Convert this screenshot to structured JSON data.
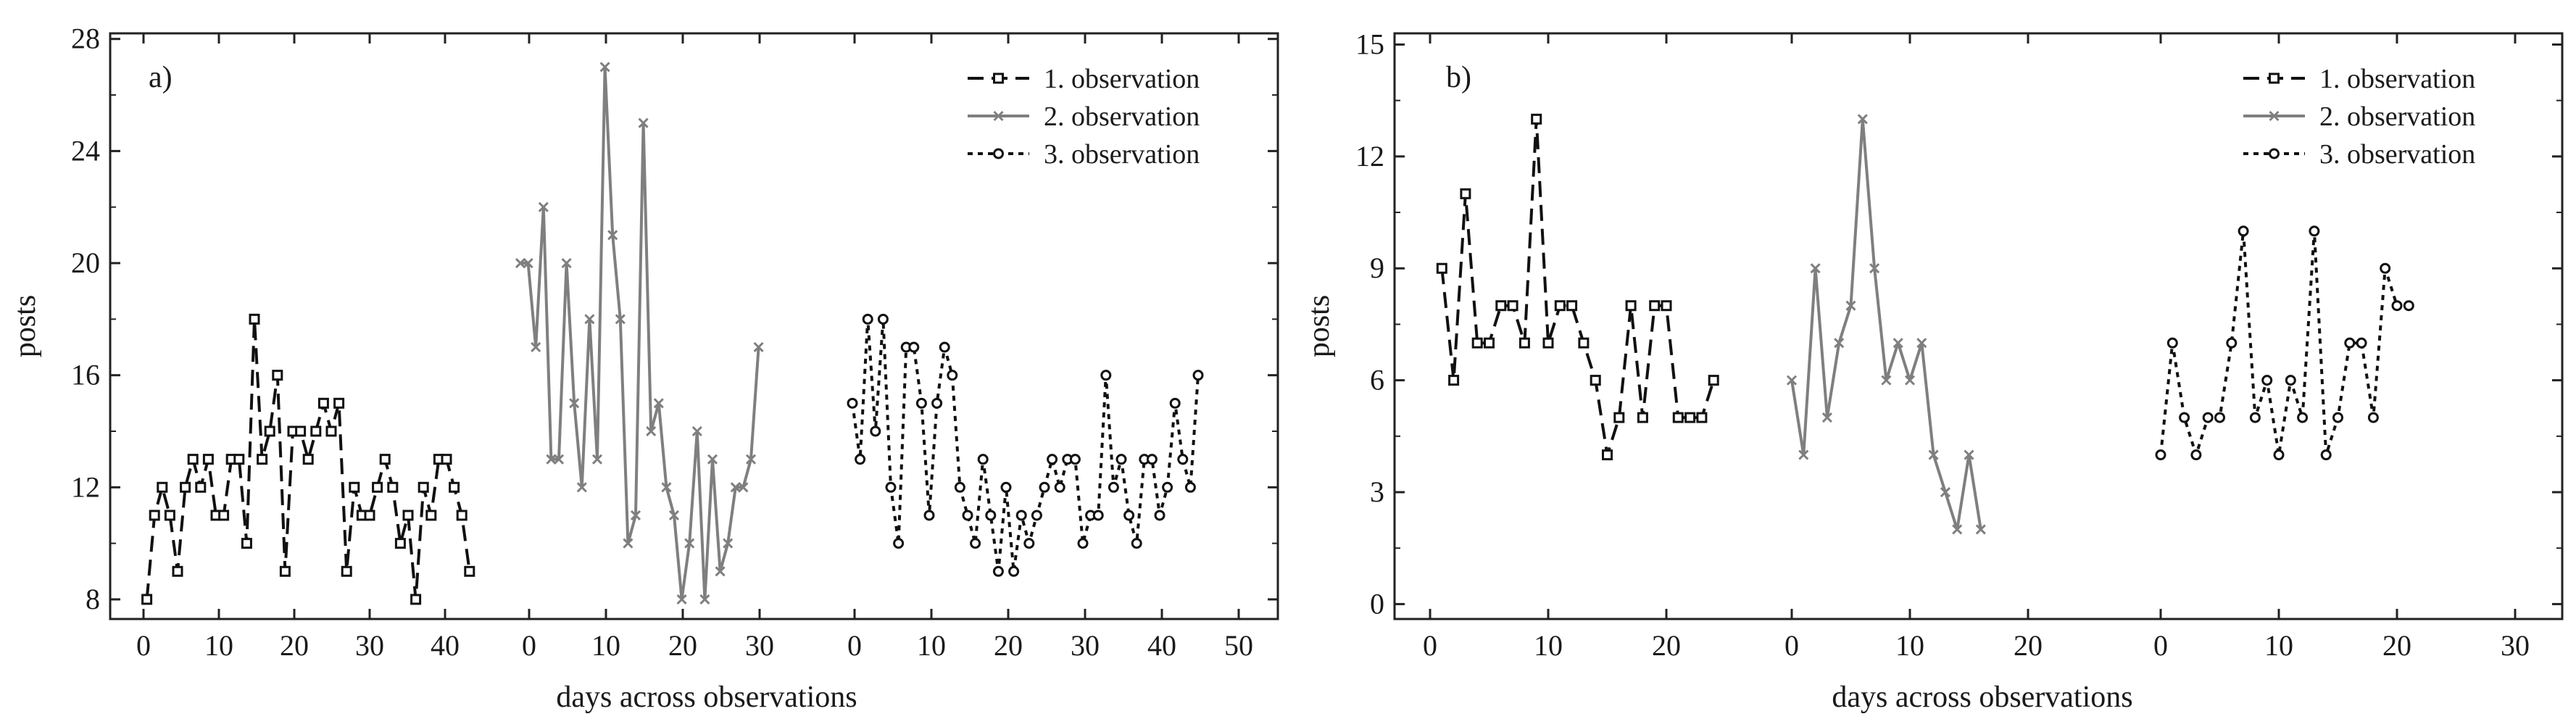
{
  "chart_data": [
    {
      "type": "line",
      "panel_label": "a)",
      "xlabel": "days across observations",
      "ylabel": "posts",
      "xtick_labels": [
        "0",
        "10",
        "20",
        "30",
        "40",
        "0",
        "10",
        "20",
        "30",
        "0",
        "10",
        "20",
        "30",
        "40",
        "50"
      ],
      "yticks": [
        8,
        12,
        16,
        20,
        24,
        28
      ],
      "ylim": [
        7.3,
        28.2
      ],
      "grid": false,
      "legend_position": "top-right",
      "series": [
        {
          "name": "1. observation",
          "style": "dashed",
          "color": "#111111",
          "marker": "square",
          "x": [
            1,
            2,
            3,
            4,
            5,
            6,
            7,
            8,
            9,
            10,
            11,
            12,
            13,
            14,
            15,
            16,
            17,
            18,
            19,
            20,
            21,
            22,
            23,
            24,
            25,
            26,
            27,
            28,
            29,
            30,
            31,
            32,
            33,
            34,
            35,
            36,
            37,
            38,
            39,
            40,
            41,
            42,
            43
          ],
          "y": [
            8,
            11,
            12,
            11,
            9,
            12,
            13,
            12,
            13,
            11,
            11,
            13,
            13,
            10,
            18,
            13,
            14,
            16,
            9,
            14,
            14,
            13,
            14,
            15,
            14,
            15,
            9,
            12,
            11,
            11,
            12,
            13,
            12,
            10,
            11,
            8,
            12,
            11,
            13,
            13,
            12,
            11,
            9
          ]
        },
        {
          "name": "2. observation",
          "style": "solid",
          "color": "#7f7f7f",
          "marker": "x",
          "x": [
            0,
            1,
            2,
            3,
            4,
            5,
            6,
            7,
            8,
            9,
            10,
            11,
            12,
            13,
            14,
            15,
            16,
            17,
            18,
            19,
            20,
            21,
            22,
            23,
            24,
            25,
            26,
            27,
            28,
            29,
            30,
            31
          ],
          "y": [
            20,
            20,
            17,
            22,
            13,
            13,
            20,
            15,
            12,
            18,
            13,
            27,
            21,
            18,
            10,
            11,
            25,
            14,
            15,
            12,
            11,
            8,
            10,
            14,
            8,
            13,
            9,
            10,
            12,
            12,
            13,
            17
          ]
        },
        {
          "name": "3. observation",
          "style": "dotted",
          "color": "#111111",
          "marker": "circle",
          "x": [
            0,
            1,
            2,
            3,
            4,
            5,
            6,
            7,
            8,
            9,
            10,
            11,
            12,
            13,
            14,
            15,
            16,
            17,
            18,
            19,
            20,
            21,
            22,
            23,
            24,
            25,
            26,
            27,
            28,
            29,
            30,
            31,
            32,
            33,
            34,
            35,
            36,
            37,
            38,
            39,
            40,
            41,
            42,
            43,
            44,
            45
          ],
          "y": [
            15,
            13,
            18,
            14,
            18,
            12,
            10,
            17,
            17,
            15,
            11,
            15,
            17,
            16,
            12,
            11,
            10,
            13,
            11,
            9,
            12,
            9,
            11,
            10,
            11,
            12,
            13,
            12,
            13,
            13,
            10,
            11,
            11,
            16,
            12,
            13,
            11,
            10,
            13,
            13,
            11,
            12,
            15,
            13,
            12,
            16
          ]
        }
      ]
    },
    {
      "type": "line",
      "panel_label": "b)",
      "xlabel": "days across observations",
      "ylabel": "posts",
      "xtick_labels": [
        "0",
        "10",
        "20",
        "0",
        "10",
        "20",
        "0",
        "10",
        "20",
        "30"
      ],
      "yticks": [
        0,
        3,
        6,
        9,
        12,
        15
      ],
      "ylim": [
        -0.4,
        15.3
      ],
      "grid": false,
      "legend_position": "top-right",
      "series": [
        {
          "name": "1. observation",
          "style": "dashed",
          "color": "#111111",
          "marker": "square",
          "x": [
            1,
            2,
            3,
            4,
            5,
            6,
            7,
            8,
            9,
            10,
            11,
            12,
            13,
            14,
            15,
            16,
            17,
            18,
            19,
            20,
            21,
            22,
            23,
            24
          ],
          "y": [
            9,
            6,
            11,
            7,
            7,
            8,
            8,
            7,
            13,
            7,
            8,
            8,
            7,
            6,
            4,
            5,
            8,
            5,
            8,
            8,
            5,
            5,
            5,
            6
          ]
        },
        {
          "name": "2. observation",
          "style": "solid",
          "color": "#7f7f7f",
          "marker": "x",
          "x": [
            0,
            1,
            2,
            3,
            4,
            5,
            6,
            7,
            8,
            9,
            10,
            11,
            12,
            13,
            14,
            15,
            16
          ],
          "y": [
            6,
            4,
            9,
            5,
            7,
            8,
            13,
            9,
            6,
            7,
            6,
            7,
            4,
            3,
            2,
            4,
            2
          ]
        },
        {
          "name": "3. observation",
          "style": "dotted",
          "color": "#111111",
          "marker": "circle",
          "x": [
            0,
            1,
            2,
            3,
            4,
            5,
            6,
            7,
            8,
            9,
            10,
            11,
            12,
            13,
            14,
            15,
            16,
            17,
            18,
            19,
            20,
            21
          ],
          "y": [
            4,
            7,
            5,
            4,
            5,
            5,
            7,
            10,
            5,
            6,
            4,
            6,
            5,
            10,
            4,
            5,
            7,
            7,
            5,
            9,
            8,
            8
          ]
        }
      ]
    }
  ]
}
